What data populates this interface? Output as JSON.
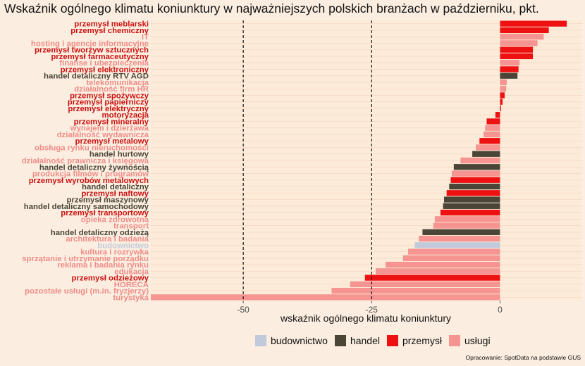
{
  "chart_data": {
    "type": "bar",
    "orientation": "horizontal",
    "title": "Wskaźnik ogólnego klimatu koniunktury w najważniejszych polskich branżach w październiku, pkt.",
    "xlabel": "wskaźnik ogólnego klimatu koniunktury",
    "ylabel": "",
    "xlim": [
      -68,
      16
    ],
    "xticks": [
      -50,
      -25,
      0
    ],
    "reference_lines": [
      -50,
      -25
    ],
    "grid": true,
    "legend_position": "bottom",
    "legend": [
      {
        "key": "budownictwo",
        "label": "budownictwo",
        "color": "#c1cadb"
      },
      {
        "key": "handel",
        "label": "handel",
        "color": "#4a4536"
      },
      {
        "key": "przemysl",
        "label": "przemysł",
        "color": "#ee1111"
      },
      {
        "key": "uslugi",
        "label": "usługi",
        "color": "#f59490"
      }
    ],
    "group_colors": {
      "budownictwo": "#c1cadb",
      "handel": "#4a4536",
      "przemysl": "#ee1111",
      "uslugi": "#f59490"
    },
    "label_colors": {
      "budownictwo": "#c1cadb",
      "handel": "#4a4536",
      "przemysl": "#cc1111",
      "uslugi": "#f08c88"
    },
    "categories": [
      {
        "label": "przemysł meblarski",
        "value": 13.0,
        "group": "przemysl"
      },
      {
        "label": "przemysł chemiczny",
        "value": 9.5,
        "group": "przemysl"
      },
      {
        "label": "IT",
        "value": 8.5,
        "group": "uslugi"
      },
      {
        "label": "hosting i agencje informacyjne",
        "value": 7.3,
        "group": "uslugi"
      },
      {
        "label": "przemysł tworzyw sztucznych",
        "value": 6.4,
        "group": "przemysl"
      },
      {
        "label": "przemysł farmaceutyczny",
        "value": 6.4,
        "group": "przemysl"
      },
      {
        "label": "finanse i ubezpieczenia",
        "value": 3.8,
        "group": "uslugi"
      },
      {
        "label": "przemysł elektroniczny",
        "value": 3.6,
        "group": "przemysl"
      },
      {
        "label": "handel detaliczny RTV AGD",
        "value": 3.4,
        "group": "handel"
      },
      {
        "label": "telekomunikacja",
        "value": 1.3,
        "group": "uslugi"
      },
      {
        "label": "działalność firm HR",
        "value": 1.2,
        "group": "uslugi"
      },
      {
        "label": "przemysł spożywczy",
        "value": 0.9,
        "group": "przemysl"
      },
      {
        "label": "przemysł papierniczy",
        "value": 0.5,
        "group": "przemysl"
      },
      {
        "label": "przemysł elektryczny",
        "value": 0.2,
        "group": "przemysl"
      },
      {
        "label": "motoryzacja",
        "value": -0.9,
        "group": "przemysl"
      },
      {
        "label": "przemysł mineralny",
        "value": -2.6,
        "group": "przemysl"
      },
      {
        "label": "wynajem i dzierżawa",
        "value": -2.9,
        "group": "uslugi"
      },
      {
        "label": "działalność wydawnicza",
        "value": -3.2,
        "group": "uslugi"
      },
      {
        "label": "przemysł metalowy",
        "value": -4.0,
        "group": "przemysl"
      },
      {
        "label": "obsługa rynku nieruchomości",
        "value": -4.7,
        "group": "uslugi"
      },
      {
        "label": "handel hurtowy",
        "value": -5.4,
        "group": "handel"
      },
      {
        "label": "działalność prawnicza i księgowa",
        "value": -7.7,
        "group": "uslugi"
      },
      {
        "label": "handel detaliczny żywnością",
        "value": -9.0,
        "group": "handel"
      },
      {
        "label": "produkcja filmów i programów",
        "value": -9.4,
        "group": "uslugi"
      },
      {
        "label": "przemysł wyrobów metalowych",
        "value": -9.6,
        "group": "przemysl"
      },
      {
        "label": "handel detaliczny",
        "value": -9.9,
        "group": "handel"
      },
      {
        "label": "przemysł naftowy",
        "value": -10.4,
        "group": "przemysl"
      },
      {
        "label": "przemysł maszynowy",
        "value": -10.9,
        "group": "handel"
      },
      {
        "label": "handel detaliczny samochodowy",
        "value": -11.1,
        "group": "handel"
      },
      {
        "label": "przemysł transportowy",
        "value": -11.6,
        "group": "przemysl"
      },
      {
        "label": "opieka zdrowotna",
        "value": -12.7,
        "group": "uslugi"
      },
      {
        "label": "transport",
        "value": -13.0,
        "group": "uslugi"
      },
      {
        "label": "handel detaliczny odzieżą",
        "value": -15.1,
        "group": "handel"
      },
      {
        "label": "architektura i badania",
        "value": -15.8,
        "group": "uslugi"
      },
      {
        "label": "budownictwo",
        "value": -16.6,
        "group": "budownictwo"
      },
      {
        "label": "kultura i rozrywka",
        "value": -17.9,
        "group": "uslugi"
      },
      {
        "label": "sprzątanie i utrzymanie porządku",
        "value": -18.9,
        "group": "uslugi"
      },
      {
        "label": "reklama i badania rynku",
        "value": -22.3,
        "group": "uslugi"
      },
      {
        "label": "edukacja",
        "value": -24.2,
        "group": "uslugi"
      },
      {
        "label": "przemysł odzieżowy",
        "value": -26.3,
        "group": "przemysl"
      },
      {
        "label": "HORECA",
        "value": -29.2,
        "group": "uslugi"
      },
      {
        "label": "pozostałe usługi (m.in. fryzjerzy)",
        "value": -32.8,
        "group": "uslugi"
      },
      {
        "label": "turystyka",
        "value": -68.0,
        "group": "uslugi"
      }
    ]
  },
  "source_note": "Opracowanie: SpotData na podstawie GUS"
}
